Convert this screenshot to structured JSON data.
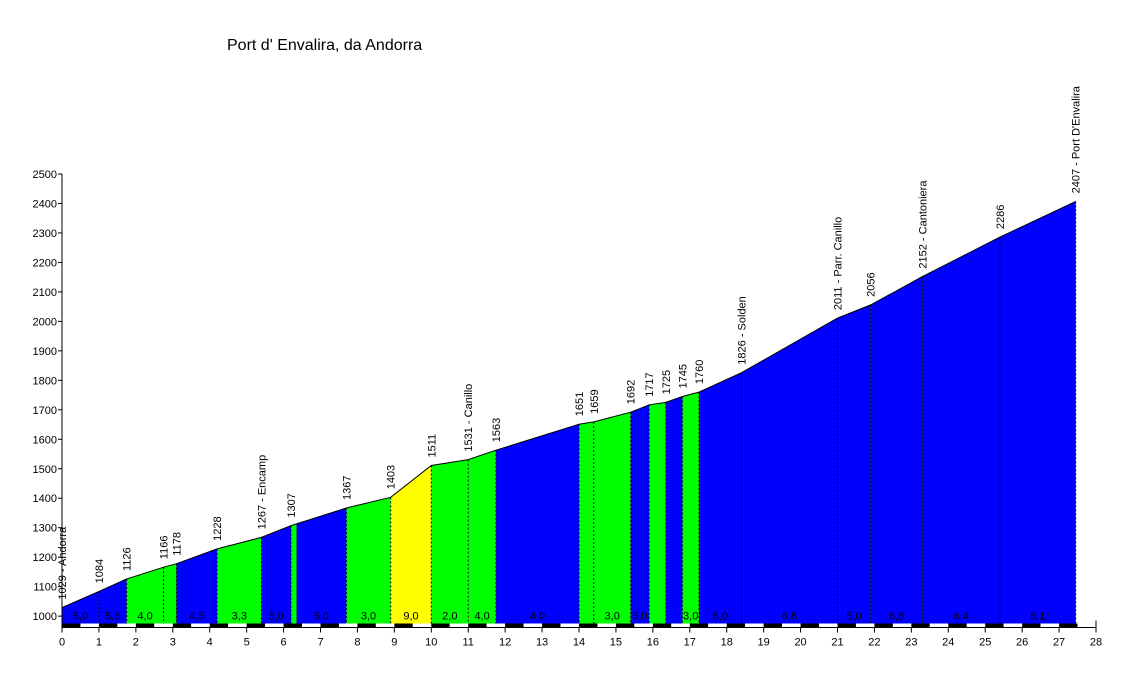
{
  "chart_data": {
    "type": "area",
    "title": "Port d' Envalira, da Andorra",
    "xlabel": "",
    "ylabel": "",
    "xlim": [
      0,
      28
    ],
    "ylim": [
      975,
      2500
    ],
    "x_ticks": [
      0,
      1,
      2,
      3,
      4,
      5,
      6,
      7,
      8,
      9,
      10,
      11,
      12,
      13,
      14,
      15,
      16,
      17,
      18,
      19,
      20,
      21,
      22,
      23,
      24,
      25,
      26,
      27,
      28
    ],
    "y_ticks": [
      1000,
      1100,
      1200,
      1300,
      1400,
      1500,
      1600,
      1700,
      1800,
      1900,
      2000,
      2100,
      2200,
      2300,
      2400,
      2500
    ],
    "grid": false,
    "profile": [
      {
        "x": 0,
        "y": 1029
      },
      {
        "x": 1,
        "y": 1084
      },
      {
        "x": 1.75,
        "y": 1126
      },
      {
        "x": 2.75,
        "y": 1166
      },
      {
        "x": 3.1,
        "y": 1178
      },
      {
        "x": 4.2,
        "y": 1228
      },
      {
        "x": 5.4,
        "y": 1267
      },
      {
        "x": 6.2,
        "y": 1307
      },
      {
        "x": 7.7,
        "y": 1367
      },
      {
        "x": 8.9,
        "y": 1403
      },
      {
        "x": 10,
        "y": 1511
      },
      {
        "x": 11,
        "y": 1531
      },
      {
        "x": 11.75,
        "y": 1563
      },
      {
        "x": 14,
        "y": 1651
      },
      {
        "x": 14.4,
        "y": 1659
      },
      {
        "x": 15.4,
        "y": 1692
      },
      {
        "x": 15.9,
        "y": 1717
      },
      {
        "x": 16.35,
        "y": 1725
      },
      {
        "x": 16.8,
        "y": 1745
      },
      {
        "x": 17.25,
        "y": 1760
      },
      {
        "x": 18.4,
        "y": 1826
      },
      {
        "x": 21,
        "y": 2011
      },
      {
        "x": 21.9,
        "y": 2056
      },
      {
        "x": 23.3,
        "y": 2152
      },
      {
        "x": 25.4,
        "y": 2286
      },
      {
        "x": 27.45,
        "y": 2407
      }
    ],
    "markers": [
      {
        "x": 0,
        "label": "1029 - Andorra"
      },
      {
        "x": 1,
        "label": "1084"
      },
      {
        "x": 1.75,
        "label": "1126"
      },
      {
        "x": 2.75,
        "label": "1166"
      },
      {
        "x": 3.1,
        "label": "1178"
      },
      {
        "x": 4.2,
        "label": "1228"
      },
      {
        "x": 5.4,
        "label": "1267 - Encamp"
      },
      {
        "x": 6.2,
        "label": "1307"
      },
      {
        "x": 7.7,
        "label": "1367"
      },
      {
        "x": 8.9,
        "label": "1403"
      },
      {
        "x": 10,
        "label": "1511"
      },
      {
        "x": 11,
        "label": "1531 - Canillo"
      },
      {
        "x": 11.75,
        "label": "1563"
      },
      {
        "x": 14,
        "label": "1651"
      },
      {
        "x": 14.4,
        "label": "1659"
      },
      {
        "x": 15.4,
        "label": "1692"
      },
      {
        "x": 15.9,
        "label": "1717"
      },
      {
        "x": 16.35,
        "label": "1725"
      },
      {
        "x": 16.8,
        "label": "1745"
      },
      {
        "x": 17.25,
        "label": "1760"
      },
      {
        "x": 18.4,
        "label": "1826 - Solden"
      },
      {
        "x": 21,
        "label": "2011 - Parr. Canillo"
      },
      {
        "x": 21.9,
        "label": "2056"
      },
      {
        "x": 23.3,
        "label": "2152 - Cantoniera"
      },
      {
        "x": 25.4,
        "label": "2286"
      },
      {
        "x": 27.45,
        "label": "2407 - Port D'Envalira"
      }
    ],
    "segments": [
      {
        "from": 0,
        "to": 1,
        "gradient": "5,0",
        "color": "#0000ff"
      },
      {
        "from": 1,
        "to": 1.75,
        "gradient": "5,6",
        "color": "#0000ff"
      },
      {
        "from": 1.75,
        "to": 2.75,
        "gradient": "4,0",
        "color": "#00ff00"
      },
      {
        "from": 2.75,
        "to": 3.1,
        "gradient": "",
        "color": "#00ff00"
      },
      {
        "from": 3.1,
        "to": 4.2,
        "gradient": "4,5",
        "color": "#0000ff"
      },
      {
        "from": 4.2,
        "to": 5.4,
        "gradient": "3,3",
        "color": "#00ff00"
      },
      {
        "from": 5.4,
        "to": 6.2,
        "gradient": "5,0",
        "color": "#0000ff"
      },
      {
        "from": 6.2,
        "to": 6.35,
        "gradient": "",
        "color": "#00ff00"
      },
      {
        "from": 6.35,
        "to": 7.7,
        "gradient": "5,0",
        "color": "#0000ff"
      },
      {
        "from": 7.7,
        "to": 8.9,
        "gradient": "3,0",
        "color": "#00ff00"
      },
      {
        "from": 8.9,
        "to": 10,
        "gradient": "9,0",
        "color": "#ffff00"
      },
      {
        "from": 10,
        "to": 11,
        "gradient": "2,0",
        "color": "#00ff00"
      },
      {
        "from": 11,
        "to": 11.75,
        "gradient": "4,0",
        "color": "#00ff00"
      },
      {
        "from": 11.75,
        "to": 14,
        "gradient": "4,0",
        "color": "#0000ff"
      },
      {
        "from": 14,
        "to": 14.4,
        "gradient": "",
        "color": "#00ff00"
      },
      {
        "from": 14.4,
        "to": 15.4,
        "gradient": "3,0",
        "color": "#00ff00"
      },
      {
        "from": 15.4,
        "to": 15.9,
        "gradient": "5,0",
        "color": "#0000ff"
      },
      {
        "from": 15.9,
        "to": 16.35,
        "gradient": "",
        "color": "#00ff00"
      },
      {
        "from": 16.35,
        "to": 16.8,
        "gradient": "",
        "color": "#0000ff"
      },
      {
        "from": 16.8,
        "to": 17.25,
        "gradient": "3,0",
        "color": "#00ff00"
      },
      {
        "from": 17.25,
        "to": 18.4,
        "gradient": "6,0",
        "color": "#0000ff"
      },
      {
        "from": 18.4,
        "to": 21,
        "gradient": "6,8",
        "color": "#0000ff"
      },
      {
        "from": 21,
        "to": 21.9,
        "gradient": "5,0",
        "color": "#0000ff"
      },
      {
        "from": 21.9,
        "to": 23.3,
        "gradient": "6,8",
        "color": "#0000ff"
      },
      {
        "from": 23.3,
        "to": 25.4,
        "gradient": "6,4",
        "color": "#0000ff"
      },
      {
        "from": 25.4,
        "to": 27.45,
        "gradient": "6,1",
        "color": "#0000ff"
      }
    ]
  }
}
